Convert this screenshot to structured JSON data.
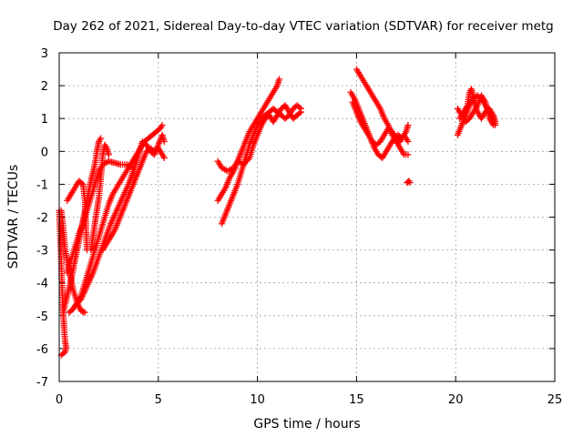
{
  "chart_data": {
    "type": "scatter",
    "title": "Day 262 of 2021, Sidereal Day-to-day VTEC variation (SDTVAR) for receiver metg",
    "xlabel": "GPS time / hours",
    "ylabel": "SDTVAR / TECUs",
    "xlim": [
      0,
      25
    ],
    "ylim": [
      -7,
      3
    ],
    "xticks": [
      0,
      5,
      10,
      15,
      20,
      25
    ],
    "yticks": [
      -7,
      -6,
      -5,
      -4,
      -3,
      -2,
      -1,
      0,
      1,
      2,
      3
    ],
    "grid": true,
    "marker": "plus",
    "color": "#ff0000",
    "series": [
      {
        "name": "t1",
        "points": [
          [
            0.0,
            -1.8
          ],
          [
            0.05,
            -2.5
          ],
          [
            0.1,
            -3.3
          ],
          [
            0.15,
            -4.2
          ],
          [
            0.2,
            -4.9
          ],
          [
            0.25,
            -5.4
          ],
          [
            0.3,
            -5.8
          ],
          [
            0.35,
            -5.95
          ],
          [
            0.3,
            -6.1
          ],
          [
            0.1,
            -6.2
          ]
        ]
      },
      {
        "name": "t2",
        "points": [
          [
            0.2,
            -4.9
          ],
          [
            0.4,
            -4.4
          ],
          [
            0.6,
            -3.9
          ],
          [
            0.8,
            -3.3
          ],
          [
            1.0,
            -2.7
          ],
          [
            1.2,
            -2.1
          ],
          [
            1.4,
            -1.5
          ],
          [
            1.6,
            -0.9
          ],
          [
            1.8,
            -0.4
          ],
          [
            1.9,
            0.0
          ],
          [
            2.0,
            0.3
          ],
          [
            2.1,
            0.4
          ]
        ]
      },
      {
        "name": "t3",
        "points": [
          [
            0.4,
            -1.5
          ],
          [
            0.6,
            -1.3
          ],
          [
            0.8,
            -1.1
          ],
          [
            1.0,
            -0.9
          ],
          [
            1.2,
            -1.0
          ],
          [
            1.3,
            -1.5
          ],
          [
            1.35,
            -2.3
          ],
          [
            1.4,
            -3.0
          ]
        ]
      },
      {
        "name": "t4",
        "points": [
          [
            0.1,
            -1.8
          ],
          [
            0.2,
            -2.3
          ],
          [
            0.3,
            -3.0
          ],
          [
            0.5,
            -3.6
          ],
          [
            0.7,
            -4.2
          ],
          [
            0.9,
            -4.6
          ],
          [
            1.1,
            -4.85
          ],
          [
            1.3,
            -4.9
          ]
        ]
      },
      {
        "name": "t5",
        "points": [
          [
            0.5,
            -4.9
          ],
          [
            0.7,
            -4.8
          ],
          [
            0.9,
            -4.6
          ],
          [
            1.1,
            -4.4
          ],
          [
            1.3,
            -4.0
          ],
          [
            1.5,
            -3.6
          ],
          [
            1.7,
            -3.2
          ],
          [
            1.9,
            -2.8
          ],
          [
            2.1,
            -2.4
          ],
          [
            2.3,
            -2.0
          ],
          [
            2.5,
            -1.6
          ],
          [
            2.7,
            -1.3
          ],
          [
            2.9,
            -1.1
          ],
          [
            3.1,
            -0.9
          ],
          [
            3.3,
            -0.7
          ],
          [
            3.5,
            -0.5
          ],
          [
            3.7,
            -0.3
          ],
          [
            3.9,
            -0.1
          ],
          [
            4.1,
            0.1
          ],
          [
            4.3,
            0.3
          ],
          [
            4.5,
            0.4
          ],
          [
            4.7,
            0.5
          ],
          [
            4.9,
            0.6
          ],
          [
            5.1,
            0.7
          ],
          [
            5.2,
            0.8
          ]
        ]
      },
      {
        "name": "t6",
        "points": [
          [
            0.8,
            -4.7
          ],
          [
            1.1,
            -4.5
          ],
          [
            1.4,
            -4.1
          ],
          [
            1.7,
            -3.7
          ],
          [
            2.0,
            -3.2
          ],
          [
            2.3,
            -2.7
          ],
          [
            2.6,
            -2.2
          ],
          [
            2.9,
            -1.8
          ],
          [
            3.2,
            -1.4
          ],
          [
            3.5,
            -1.0
          ],
          [
            3.8,
            -0.5
          ],
          [
            4.0,
            -0.1
          ],
          [
            4.2,
            0.3
          ],
          [
            4.4,
            0.2
          ],
          [
            4.6,
            0.0
          ],
          [
            4.8,
            -0.1
          ],
          [
            5.0,
            0.2
          ],
          [
            5.2,
            0.5
          ],
          [
            5.3,
            0.3
          ]
        ]
      },
      {
        "name": "t7",
        "points": [
          [
            0.4,
            -3.7
          ],
          [
            0.6,
            -3.3
          ],
          [
            0.8,
            -2.9
          ],
          [
            1.0,
            -2.5
          ],
          [
            1.2,
            -2.2
          ],
          [
            1.4,
            -1.8
          ],
          [
            1.6,
            -1.4
          ],
          [
            1.8,
            -1.0
          ],
          [
            2.0,
            -0.6
          ],
          [
            2.2,
            -0.4
          ],
          [
            2.5,
            -0.3
          ],
          [
            2.8,
            -0.35
          ],
          [
            3.1,
            -0.4
          ],
          [
            3.4,
            -0.4
          ],
          [
            3.7,
            -0.5
          ]
        ]
      },
      {
        "name": "t8",
        "points": [
          [
            1.6,
            -3.0
          ],
          [
            1.8,
            -2.2
          ],
          [
            2.0,
            -1.4
          ],
          [
            2.1,
            -0.8
          ],
          [
            2.2,
            -0.1
          ],
          [
            2.3,
            0.2
          ],
          [
            2.4,
            0.1
          ],
          [
            2.5,
            -0.1
          ]
        ]
      },
      {
        "name": "t9",
        "points": [
          [
            2.2,
            -3.0
          ],
          [
            2.4,
            -2.8
          ],
          [
            2.6,
            -2.6
          ],
          [
            2.8,
            -2.4
          ],
          [
            3.0,
            -2.1
          ],
          [
            3.2,
            -1.8
          ],
          [
            3.4,
            -1.5
          ],
          [
            3.6,
            -1.2
          ],
          [
            3.8,
            -0.9
          ],
          [
            4.0,
            -0.6
          ],
          [
            4.2,
            -0.3
          ],
          [
            4.4,
            0.0
          ],
          [
            4.6,
            0.1
          ],
          [
            4.8,
            0.0
          ],
          [
            5.0,
            0.1
          ],
          [
            5.2,
            -0.1
          ],
          [
            5.3,
            -0.2
          ]
        ]
      },
      {
        "name": "t10",
        "points": [
          [
            8.0,
            -1.5
          ],
          [
            8.2,
            -1.3
          ],
          [
            8.4,
            -1.1
          ],
          [
            8.6,
            -0.8
          ],
          [
            8.8,
            -0.6
          ],
          [
            9.0,
            -0.3
          ],
          [
            9.2,
            0.0
          ],
          [
            9.4,
            0.3
          ],
          [
            9.6,
            0.6
          ],
          [
            9.8,
            0.8
          ],
          [
            10.0,
            1.0
          ],
          [
            10.2,
            1.2
          ],
          [
            10.4,
            1.4
          ],
          [
            10.6,
            1.6
          ],
          [
            10.8,
            1.8
          ],
          [
            11.0,
            2.0
          ],
          [
            11.1,
            2.2
          ]
        ]
      },
      {
        "name": "t11",
        "points": [
          [
            8.2,
            -2.2
          ],
          [
            8.4,
            -1.9
          ],
          [
            8.6,
            -1.6
          ],
          [
            8.8,
            -1.3
          ],
          [
            9.0,
            -1.0
          ],
          [
            9.2,
            -0.6
          ],
          [
            9.4,
            -0.2
          ],
          [
            9.6,
            0.2
          ],
          [
            9.8,
            0.5
          ],
          [
            10.0,
            0.8
          ],
          [
            10.2,
            1.0
          ],
          [
            10.4,
            1.1
          ],
          [
            10.6,
            1.2
          ],
          [
            10.8,
            1.3
          ],
          [
            11.0,
            1.2
          ],
          [
            11.2,
            1.1
          ],
          [
            11.4,
            1.0
          ],
          [
            11.6,
            1.1
          ],
          [
            11.8,
            1.3
          ],
          [
            12.0,
            1.4
          ],
          [
            12.2,
            1.3
          ]
        ]
      },
      {
        "name": "t12",
        "points": [
          [
            8.0,
            -0.3
          ],
          [
            8.2,
            -0.5
          ],
          [
            8.5,
            -0.6
          ],
          [
            8.8,
            -0.5
          ],
          [
            9.0,
            -0.3
          ],
          [
            9.3,
            -0.4
          ],
          [
            9.6,
            -0.2
          ],
          [
            9.8,
            0.2
          ],
          [
            10.0,
            0.5
          ],
          [
            10.2,
            0.8
          ],
          [
            10.4,
            1.0
          ],
          [
            10.6,
            1.1
          ],
          [
            10.8,
            0.9
          ],
          [
            11.0,
            1.1
          ],
          [
            11.2,
            1.3
          ],
          [
            11.4,
            1.4
          ],
          [
            11.6,
            1.2
          ],
          [
            11.8,
            1.0
          ],
          [
            12.0,
            1.1
          ],
          [
            12.2,
            1.2
          ]
        ]
      },
      {
        "name": "t13",
        "points": [
          [
            14.7,
            1.8
          ],
          [
            14.9,
            1.6
          ],
          [
            15.1,
            1.3
          ],
          [
            15.3,
            1.0
          ],
          [
            15.5,
            0.7
          ],
          [
            15.7,
            0.4
          ],
          [
            15.9,
            0.1
          ],
          [
            16.1,
            -0.1
          ],
          [
            16.3,
            -0.2
          ],
          [
            16.5,
            0.0
          ],
          [
            16.7,
            0.2
          ],
          [
            16.9,
            0.4
          ],
          [
            17.1,
            0.5
          ],
          [
            17.3,
            0.4
          ],
          [
            17.5,
            0.6
          ],
          [
            17.6,
            0.8
          ]
        ]
      },
      {
        "name": "t14",
        "points": [
          [
            15.0,
            2.5
          ],
          [
            15.2,
            2.3
          ],
          [
            15.4,
            2.1
          ],
          [
            15.6,
            1.9
          ],
          [
            15.8,
            1.7
          ],
          [
            16.0,
            1.5
          ],
          [
            16.2,
            1.3
          ],
          [
            16.4,
            1.0
          ],
          [
            16.6,
            0.8
          ],
          [
            16.8,
            0.5
          ],
          [
            17.0,
            0.3
          ],
          [
            17.2,
            0.1
          ],
          [
            17.4,
            -0.1
          ],
          [
            17.6,
            -0.1
          ]
        ]
      },
      {
        "name": "t15",
        "points": [
          [
            14.8,
            1.5
          ],
          [
            15.0,
            1.2
          ],
          [
            15.2,
            0.9
          ],
          [
            15.4,
            0.7
          ],
          [
            15.6,
            0.5
          ],
          [
            15.8,
            0.3
          ],
          [
            16.0,
            0.2
          ],
          [
            16.2,
            0.3
          ],
          [
            16.4,
            0.5
          ],
          [
            16.6,
            0.7
          ],
          [
            16.8,
            0.6
          ],
          [
            17.0,
            0.4
          ],
          [
            17.2,
            0.3
          ],
          [
            17.4,
            0.5
          ],
          [
            17.6,
            0.3
          ]
        ]
      },
      {
        "name": "t16",
        "points": [
          [
            17.55,
            -0.95
          ],
          [
            17.65,
            -0.9
          ],
          [
            17.7,
            -0.95
          ]
        ]
      },
      {
        "name": "t17",
        "points": [
          [
            20.1,
            0.5
          ],
          [
            20.3,
            0.8
          ],
          [
            20.5,
            1.1
          ],
          [
            20.7,
            1.4
          ],
          [
            20.9,
            1.6
          ],
          [
            21.1,
            1.7
          ],
          [
            21.3,
            1.6
          ],
          [
            21.5,
            1.4
          ],
          [
            21.7,
            1.2
          ],
          [
            21.9,
            1.0
          ],
          [
            22.0,
            0.8
          ]
        ]
      },
      {
        "name": "t18",
        "points": [
          [
            20.2,
            1.0
          ],
          [
            20.4,
            1.2
          ],
          [
            20.6,
            1.4
          ],
          [
            20.7,
            1.8
          ],
          [
            20.8,
            1.9
          ],
          [
            20.9,
            1.6
          ],
          [
            21.1,
            1.2
          ],
          [
            21.3,
            1.0
          ],
          [
            21.5,
            1.2
          ],
          [
            21.7,
            1.3
          ],
          [
            21.9,
            1.1
          ],
          [
            22.0,
            0.9
          ]
        ]
      },
      {
        "name": "t19",
        "points": [
          [
            20.1,
            1.3
          ],
          [
            20.3,
            1.1
          ],
          [
            20.5,
            0.9
          ],
          [
            20.7,
            1.0
          ],
          [
            20.9,
            1.2
          ],
          [
            21.1,
            1.4
          ],
          [
            21.3,
            1.7
          ],
          [
            21.5,
            1.5
          ],
          [
            21.7,
            1.0
          ],
          [
            21.9,
            0.8
          ]
        ]
      }
    ]
  }
}
